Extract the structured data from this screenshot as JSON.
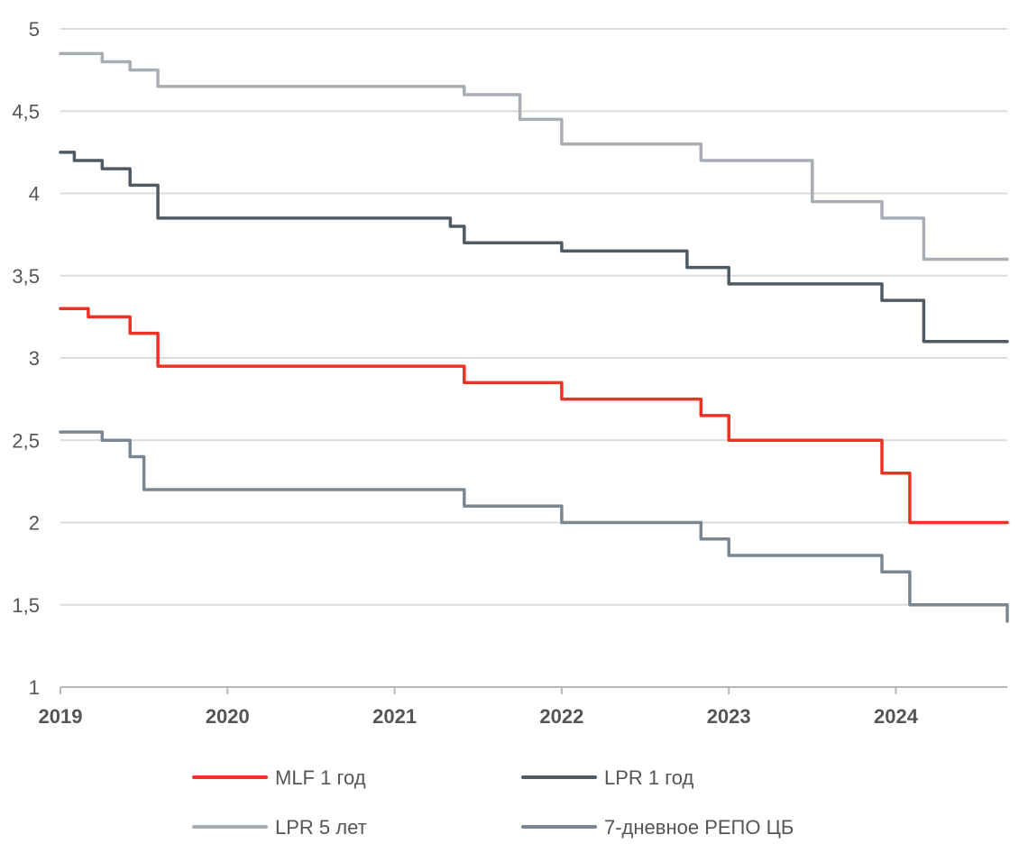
{
  "chart_data": {
    "type": "line",
    "title": "",
    "xlabel": "",
    "ylabel": "",
    "ylim": [
      1,
      5
    ],
    "xlim": [
      "2019-01",
      "2024-09"
    ],
    "y_ticks": [
      "1",
      "1,5",
      "2",
      "2,5",
      "3",
      "3,5",
      "4",
      "4,5",
      "5"
    ],
    "x_ticks": [
      "2019",
      "2020",
      "2021",
      "2022",
      "2023",
      "2024"
    ],
    "grid": "horizontal",
    "legend_position": "bottom",
    "colors": {
      "mlf": "#ee3124",
      "lpr1": "#4f5a64",
      "lpr5": "#a8aeb4",
      "repo": "#7a8792",
      "grid": "#dcdcdc",
      "axis": "#b8b8b8"
    },
    "series": [
      {
        "name": "MLF 1 год",
        "color_key": "mlf",
        "points": [
          [
            "2019-01",
            3.3
          ],
          [
            "2019-03",
            3.3
          ],
          [
            "2019-03",
            3.25
          ],
          [
            "2019-06",
            3.25
          ],
          [
            "2019-06",
            3.15
          ],
          [
            "2019-08",
            3.15
          ],
          [
            "2019-08",
            2.95
          ],
          [
            "2021-06",
            2.95
          ],
          [
            "2021-06",
            2.85
          ],
          [
            "2022-01",
            2.85
          ],
          [
            "2022-01",
            2.75
          ],
          [
            "2022-11",
            2.75
          ],
          [
            "2022-11",
            2.65
          ],
          [
            "2023-01",
            2.65
          ],
          [
            "2023-01",
            2.5
          ],
          [
            "2023-12",
            2.5
          ],
          [
            "2023-12",
            2.3
          ],
          [
            "2024-02",
            2.3
          ],
          [
            "2024-02",
            2.0
          ],
          [
            "2024-09",
            2.0
          ]
        ]
      },
      {
        "name": "LPR 1 год",
        "color_key": "lpr1",
        "points": [
          [
            "2019-01",
            4.25
          ],
          [
            "2019-02",
            4.25
          ],
          [
            "2019-02",
            4.2
          ],
          [
            "2019-04",
            4.2
          ],
          [
            "2019-04",
            4.15
          ],
          [
            "2019-06",
            4.15
          ],
          [
            "2019-06",
            4.05
          ],
          [
            "2019-08",
            4.05
          ],
          [
            "2019-08",
            3.85
          ],
          [
            "2021-05",
            3.85
          ],
          [
            "2021-05",
            3.8
          ],
          [
            "2021-06",
            3.8
          ],
          [
            "2021-06",
            3.7
          ],
          [
            "2022-01",
            3.7
          ],
          [
            "2022-01",
            3.65
          ],
          [
            "2022-10",
            3.65
          ],
          [
            "2022-10",
            3.55
          ],
          [
            "2023-01",
            3.55
          ],
          [
            "2023-01",
            3.45
          ],
          [
            "2023-12",
            3.45
          ],
          [
            "2023-12",
            3.35
          ],
          [
            "2024-03",
            3.35
          ],
          [
            "2024-03",
            3.1
          ],
          [
            "2024-09",
            3.1
          ]
        ]
      },
      {
        "name": "LPR 5 лет",
        "color_key": "lpr5",
        "points": [
          [
            "2019-01",
            4.85
          ],
          [
            "2019-04",
            4.85
          ],
          [
            "2019-04",
            4.8
          ],
          [
            "2019-06",
            4.8
          ],
          [
            "2019-06",
            4.75
          ],
          [
            "2019-08",
            4.75
          ],
          [
            "2019-08",
            4.65
          ],
          [
            "2021-06",
            4.65
          ],
          [
            "2021-06",
            4.6
          ],
          [
            "2021-10",
            4.6
          ],
          [
            "2021-10",
            4.45
          ],
          [
            "2022-01",
            4.45
          ],
          [
            "2022-01",
            4.3
          ],
          [
            "2022-11",
            4.3
          ],
          [
            "2022-11",
            4.2
          ],
          [
            "2023-07",
            4.2
          ],
          [
            "2023-07",
            3.95
          ],
          [
            "2023-12",
            3.95
          ],
          [
            "2023-12",
            3.85
          ],
          [
            "2024-03",
            3.85
          ],
          [
            "2024-03",
            3.6
          ],
          [
            "2024-09",
            3.6
          ]
        ]
      },
      {
        "name": "7-дневное РЕПО ЦБ",
        "color_key": "repo",
        "points": [
          [
            "2019-01",
            2.55
          ],
          [
            "2019-04",
            2.55
          ],
          [
            "2019-04",
            2.5
          ],
          [
            "2019-06",
            2.5
          ],
          [
            "2019-06",
            2.4
          ],
          [
            "2019-07",
            2.4
          ],
          [
            "2019-07",
            2.2
          ],
          [
            "2021-06",
            2.2
          ],
          [
            "2021-06",
            2.1
          ],
          [
            "2022-01",
            2.1
          ],
          [
            "2022-01",
            2.0
          ],
          [
            "2022-11",
            2.0
          ],
          [
            "2022-11",
            1.9
          ],
          [
            "2023-01",
            1.9
          ],
          [
            "2023-01",
            1.8
          ],
          [
            "2023-12",
            1.8
          ],
          [
            "2023-12",
            1.7
          ],
          [
            "2024-02",
            1.7
          ],
          [
            "2024-02",
            1.5
          ],
          [
            "2024-09",
            1.5
          ],
          [
            "2024-09",
            1.4
          ]
        ]
      }
    ]
  }
}
